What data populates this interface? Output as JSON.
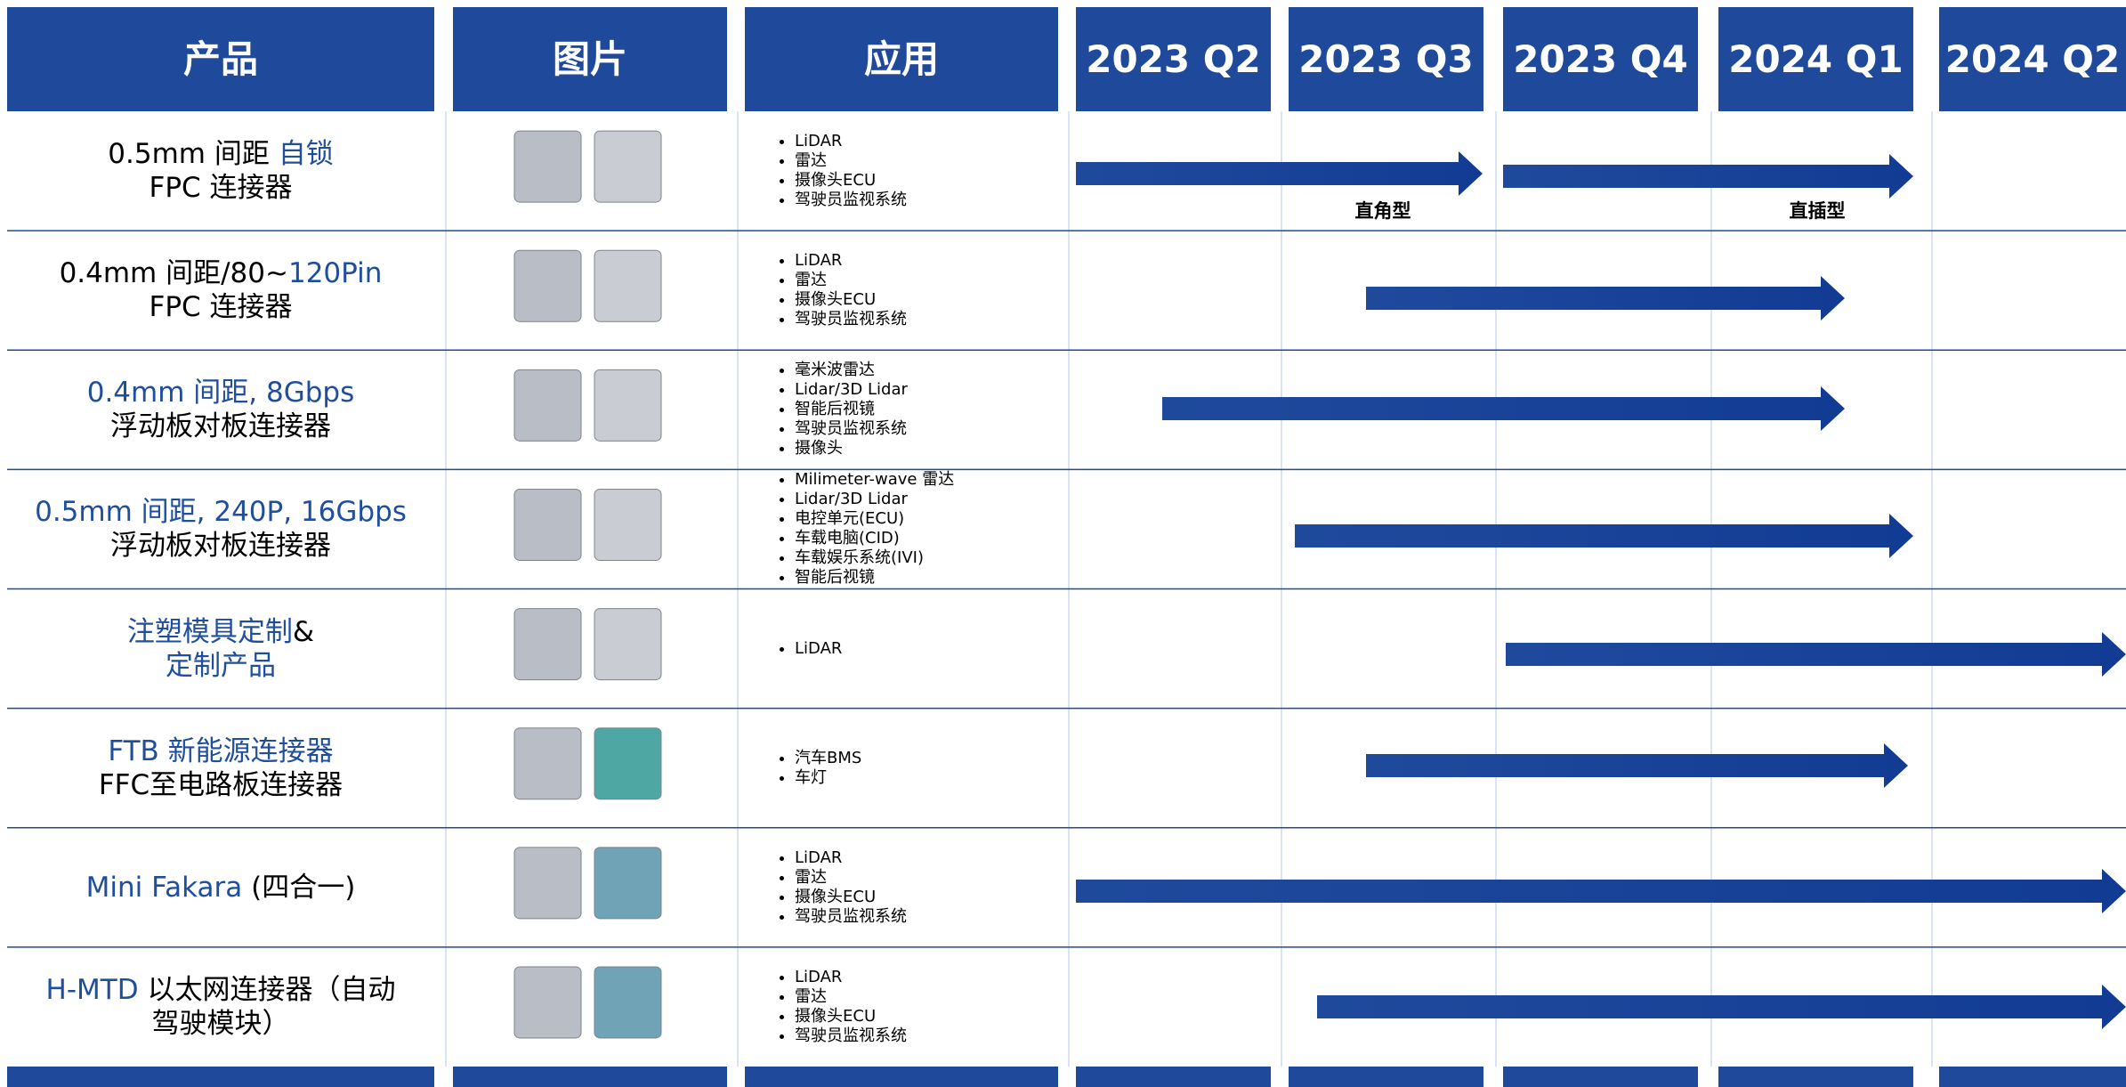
{
  "header": {
    "columns": [
      "产品",
      "图片",
      "应用",
      "2023 Q2",
      "2023 Q3",
      "2023 Q4",
      "2024 Q1",
      "2024 Q2"
    ]
  },
  "rows": [
    {
      "product": [
        [
          {
            "text": "0.5mm 间距 ",
            "color": "#000000"
          },
          {
            "text": "自锁",
            "color": "#1f4e9c"
          }
        ],
        [
          {
            "text": "FPC 连接器",
            "color": "#000000"
          }
        ]
      ],
      "applications": [
        "LiDAR",
        "雷达",
        "摄像头ECU",
        "驾驶员监视系统"
      ],
      "timeline_labels": [
        "直角型",
        "直插型"
      ]
    },
    {
      "product": [
        [
          {
            "text": "0.4mm 间距/80~",
            "color": "#000000"
          },
          {
            "text": "120Pin",
            "color": "#1f4e9c"
          }
        ],
        [
          {
            "text": "FPC 连接器",
            "color": "#000000"
          }
        ]
      ],
      "applications": [
        "LiDAR",
        "雷达",
        "摄像头ECU",
        "驾驶员监视系统"
      ]
    },
    {
      "product": [
        [
          {
            "text": "0.4mm 间距, 8Gbps",
            "color": "#1f4e9c"
          }
        ],
        [
          {
            "text": "浮动板对板连接器",
            "color": "#000000"
          }
        ]
      ],
      "applications": [
        "毫米波雷达",
        "Lidar/3D Lidar",
        "智能后视镜",
        "驾驶员监视系统",
        "摄像头"
      ]
    },
    {
      "product": [
        [
          {
            "text": "0.5mm 间距, 240P, 16Gbps",
            "color": "#1f4e9c"
          }
        ],
        [
          {
            "text": "浮动板对板连接器",
            "color": "#000000"
          }
        ]
      ],
      "applications": [
        "Milimeter-wave 雷达",
        "Lidar/3D Lidar",
        "电控单元(ECU)",
        "车载电脑(CID)",
        "车载娱乐系统(IVI)",
        "智能后视镜"
      ]
    },
    {
      "product": [
        [
          {
            "text": "注塑模具定制",
            "color": "#1f4e9c"
          },
          {
            "text": "&",
            "color": "#000000"
          }
        ],
        [
          {
            "text": "定制产品",
            "color": "#1f4e9c"
          }
        ]
      ],
      "applications": [
        "LiDAR"
      ]
    },
    {
      "product": [
        [
          {
            "text": "FTB 新能源连接器",
            "color": "#1f4e9c"
          }
        ],
        [
          {
            "text": "FFC至电路板连接器",
            "color": "#000000"
          }
        ]
      ],
      "applications": [
        "汽车BMS",
        "车灯"
      ]
    },
    {
      "product": [
        [
          {
            "text": "Mini Fakara ",
            "color": "#1f4e9c"
          },
          {
            "text": "(四合一)",
            "color": "#000000"
          }
        ]
      ],
      "applications": [
        "LiDAR",
        "雷达",
        "摄像头ECU",
        "驾驶员监视系统"
      ]
    },
    {
      "product": [
        [
          {
            "text": "H-MTD ",
            "color": "#1f4e9c"
          },
          {
            "text": "以太网连接器（自动",
            "color": "#000000"
          }
        ],
        [
          {
            "text": "驾驶模块）",
            "color": "#000000"
          }
        ]
      ],
      "applications": [
        "LiDAR",
        "雷达",
        "摄像头ECU",
        "驾驶员监视系统"
      ]
    }
  ]
}
